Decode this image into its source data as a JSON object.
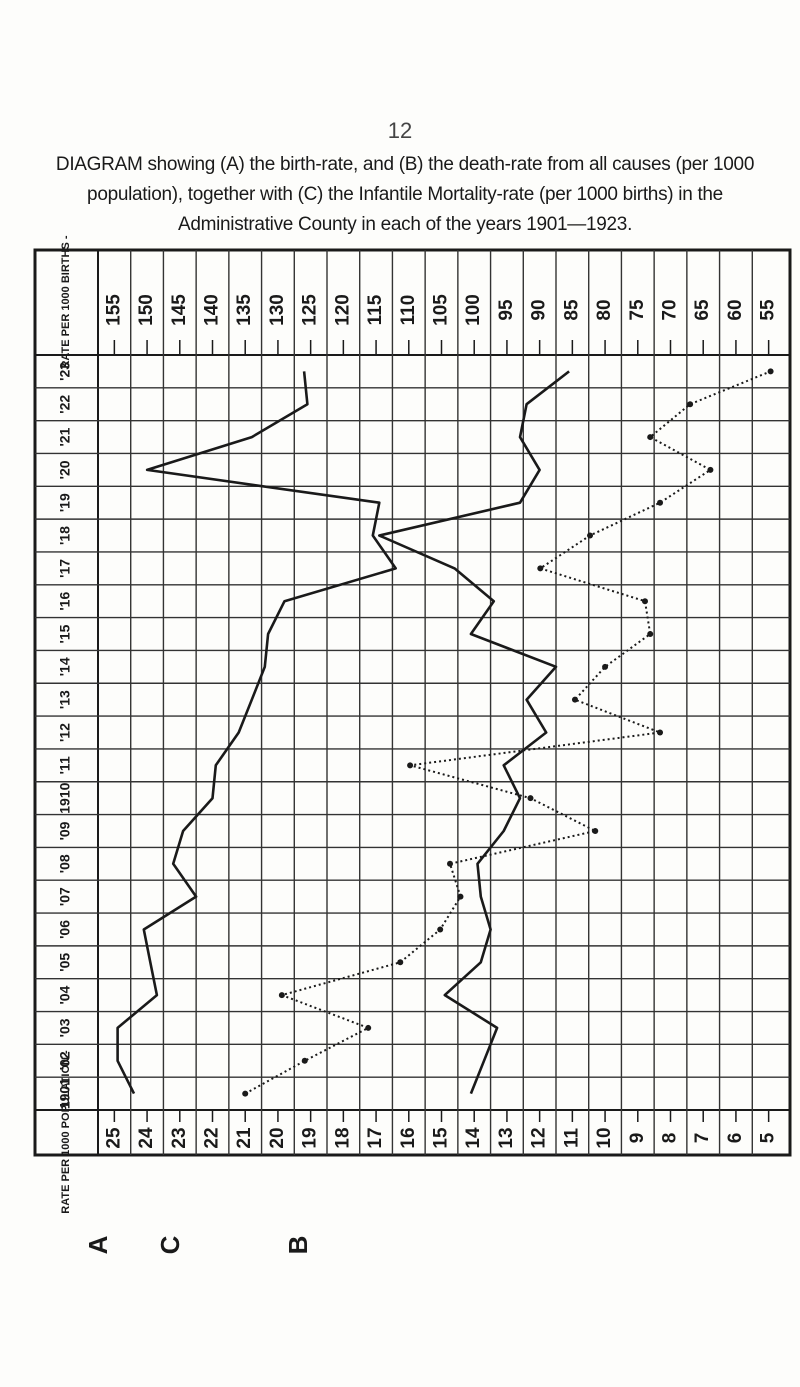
{
  "page_number": "12",
  "chart_data": {
    "type": "line",
    "title": "DIAGRAM showing (A) the birth-rate, and (B) the death-rate from all causes (per 1000 population), together with (C) the Infantile Mortality-rate (per 1000 births) in the Administrative County in each of the years 1901—1923.",
    "top_axis_label": "RATE PER 1000 BIRTHS -",
    "bottom_axis_label": "RATE PER 1000 POPULATION -",
    "categories": [
      "1901",
      "'02",
      "'03",
      "'04",
      "'05",
      "'06",
      "'07",
      "'08",
      "'09",
      "1910",
      "'11",
      "'12",
      "'13",
      "'14",
      "'15",
      "'16",
      "'17",
      "'18",
      "'19",
      "'20",
      "'21",
      "'22",
      "'23"
    ],
    "xlim": [
      25.5,
      4.5
    ],
    "xticks": [
      25,
      24,
      23,
      22,
      21,
      20,
      19,
      18,
      17,
      16,
      15,
      14,
      13,
      12,
      11,
      10,
      9,
      8,
      7,
      6,
      5
    ],
    "x2lim": [
      157.5,
      52.5
    ],
    "x2ticks": [
      155,
      150,
      145,
      140,
      135,
      130,
      125,
      120,
      115,
      110,
      105,
      100,
      95,
      90,
      85,
      80,
      75,
      70,
      65,
      60,
      55
    ],
    "series": [
      {
        "name": "A",
        "color": "#1a1a1a",
        "dashed": false,
        "values": [
          24.4,
          24.9,
          24.9,
          23.7,
          23.9,
          24.1,
          22.5,
          23.2,
          22.9,
          22.0,
          21.9,
          21.2,
          20.8,
          20.4,
          20.3,
          19.8,
          16.4,
          17.1,
          16.9,
          24.0,
          20.8,
          19.1,
          19.2
        ]
      },
      {
        "name": "B",
        "color": "#1a1a1a",
        "dashed": false,
        "values": [
          14.1,
          13.7,
          13.3,
          14.9,
          13.8,
          13.5,
          13.8,
          13.9,
          13.1,
          12.6,
          13.1,
          11.8,
          12.4,
          11.5,
          14.1,
          13.4,
          14.6,
          16.9,
          12.6,
          12.0,
          12.6,
          12.4,
          11.1
        ]
      },
      {
        "name": "C",
        "color": "#1a1a1a",
        "dashed": true,
        "axis": "x2",
        "values": [
          135.0,
          125.9,
          116.2,
          129.4,
          111.3,
          105.2,
          102.1,
          103.7,
          81.5,
          91.4,
          109.8,
          71.6,
          84.6,
          80.0,
          73.1,
          73.9,
          89.9,
          82.3,
          71.6,
          63.9,
          73.1,
          67.0,
          54.7
        ]
      }
    ],
    "legend_order": [
      0,
      2,
      1
    ]
  }
}
